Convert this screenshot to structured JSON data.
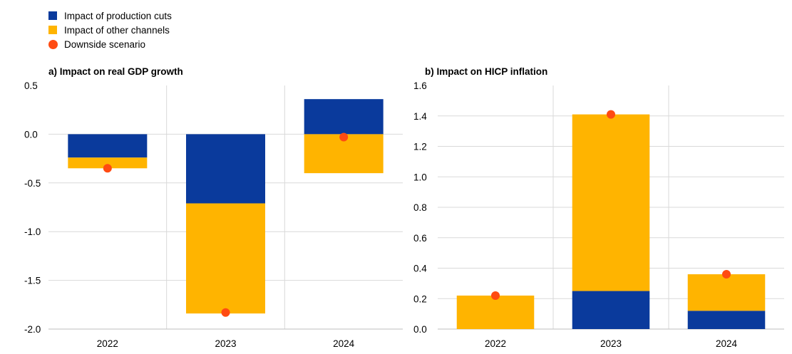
{
  "legend": {
    "items": [
      {
        "label": "Impact of production cuts",
        "color": "#0a3a9c"
      },
      {
        "label": "Impact of other channels",
        "color": "#ffb400"
      },
      {
        "label": "Downside scenario",
        "color": "#ff4b12"
      }
    ]
  },
  "chart_data": [
    {
      "type": "bar",
      "title": "a) Impact on real GDP growth",
      "categories": [
        "2022",
        "2023",
        "2024"
      ],
      "series": [
        {
          "name": "Impact of production cuts",
          "values": [
            -0.24,
            -0.71,
            0.36
          ],
          "color": "#0a3a9c"
        },
        {
          "name": "Impact of other channels",
          "values": [
            -0.11,
            -1.13,
            -0.4
          ],
          "color": "#ffb400"
        }
      ],
      "scenario": {
        "name": "Downside scenario",
        "values": [
          -0.35,
          -1.83,
          -0.03
        ],
        "color": "#ff4b12"
      },
      "ylim": [
        -2.0,
        0.5
      ],
      "yticks": [
        "0.5",
        "0.0",
        "-0.5",
        "-1.0",
        "-1.5",
        "-2.0"
      ],
      "stacked": true,
      "grid": true
    },
    {
      "type": "bar",
      "title": "b) Impact on HICP inflation",
      "categories": [
        "2022",
        "2023",
        "2024"
      ],
      "series": [
        {
          "name": "Impact of production cuts",
          "values": [
            0.0,
            0.25,
            0.12
          ],
          "color": "#0a3a9c"
        },
        {
          "name": "Impact of other channels",
          "values": [
            0.22,
            1.16,
            0.24
          ],
          "color": "#ffb400"
        }
      ],
      "scenario": {
        "name": "Downside scenario",
        "values": [
          0.22,
          1.41,
          0.36
        ],
        "color": "#ff4b12"
      },
      "ylim": [
        0.0,
        1.6
      ],
      "yticks": [
        "1.6",
        "1.4",
        "1.2",
        "1.0",
        "0.8",
        "0.6",
        "0.4",
        "0.2",
        "0.0"
      ],
      "stacked": true,
      "grid": true
    }
  ]
}
